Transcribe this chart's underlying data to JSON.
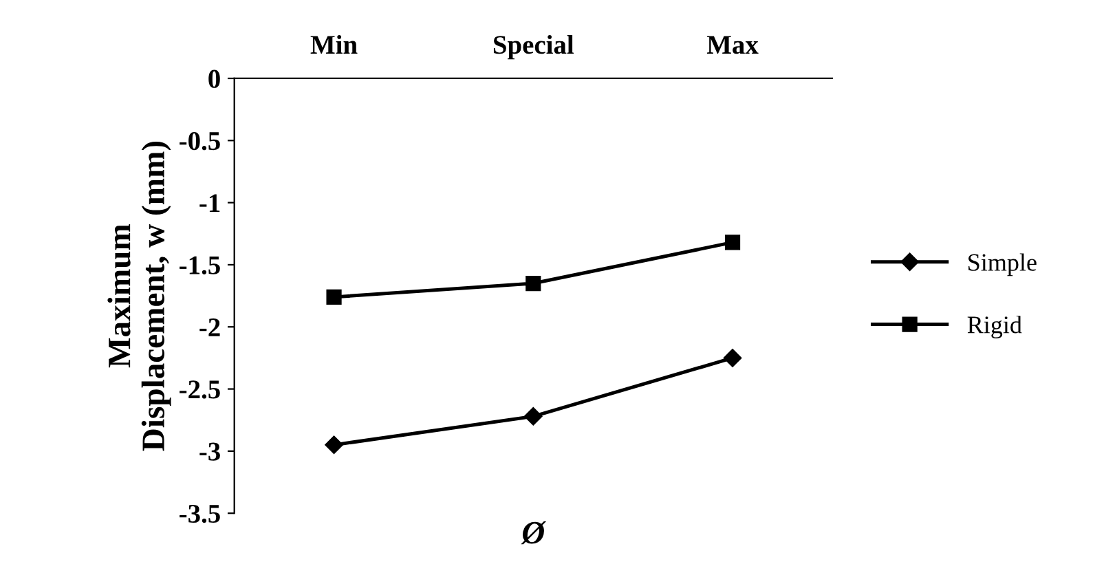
{
  "chart_data": {
    "type": "line",
    "xlabel": "Ø",
    "ylabel": "Maximum\nDisplacement, w (mm)",
    "categories": [
      "Min",
      "Special",
      "Max"
    ],
    "series": [
      {
        "name": "Simple",
        "color": "#000000",
        "marker": "diamond",
        "values": [
          -2.95,
          -2.72,
          -2.25
        ]
      },
      {
        "name": "Rigid",
        "color": "#000000",
        "marker": "square",
        "values": [
          -1.76,
          -1.65,
          -1.32
        ]
      }
    ],
    "ylim": [
      -3.5,
      0
    ],
    "yticks": [
      0,
      -0.5,
      -1,
      -1.5,
      -2,
      -2.5,
      -3,
      -3.5
    ],
    "grid": false,
    "legend": "right",
    "line_style": "solid"
  }
}
